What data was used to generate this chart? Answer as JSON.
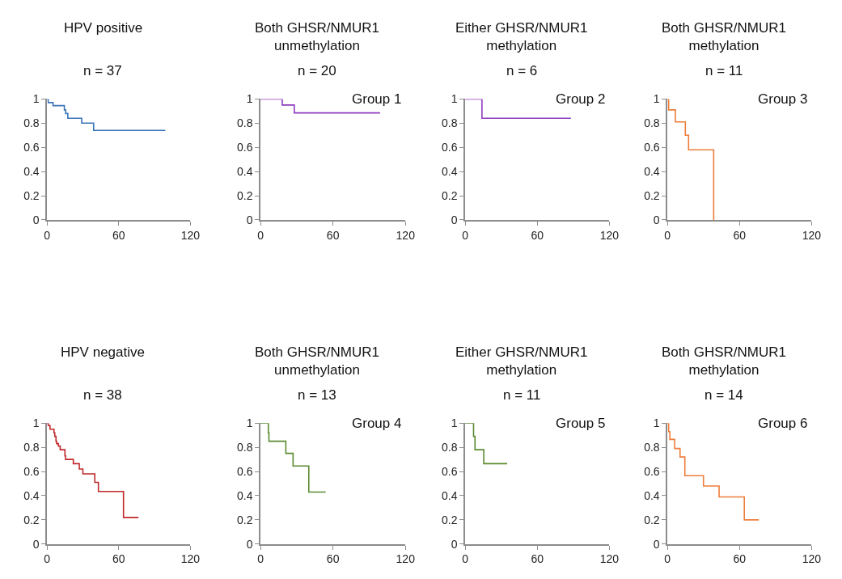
{
  "chart_data": [
    {
      "type": "step",
      "title": "HPV positive",
      "subtitle": "n = 37",
      "color": "#3a75b9",
      "x": [
        0,
        1,
        5,
        14.5,
        15.6,
        17.4,
        29,
        39,
        99
      ],
      "values": [
        1,
        0.97,
        0.945,
        0.91,
        0.88,
        0.84,
        0.8,
        0.74,
        0.74
      ],
      "xlim": [
        0,
        120
      ],
      "ylim": [
        0,
        1
      ],
      "xticks": [
        0,
        60,
        120
      ],
      "yticks": [
        0,
        0.2,
        0.4,
        0.6,
        0.8,
        1
      ]
    },
    {
      "type": "step",
      "title": "Both GHSR/NMUR1 unmethylation",
      "subtitle": "n = 20",
      "annotations": [
        "Group 1"
      ],
      "color": "#8e3bbf",
      "x": [
        0,
        18,
        28,
        99
      ],
      "values": [
        1,
        0.95,
        0.885,
        0.885
      ],
      "xlim": [
        0,
        120
      ],
      "ylim": [
        0,
        1
      ],
      "xticks": [
        0,
        60,
        120
      ],
      "yticks": [
        0,
        0.2,
        0.4,
        0.6,
        0.8,
        1
      ]
    },
    {
      "type": "step",
      "title": "Either GHSR/NMUR1 methylation",
      "subtitle": "n = 6",
      "annotations": [
        "Group 2"
      ],
      "color": "#8e3bbf",
      "x": [
        0,
        14,
        88
      ],
      "values": [
        1,
        0.84,
        0.84
      ],
      "xlim": [
        0,
        120
      ],
      "ylim": [
        0,
        1
      ],
      "xticks": [
        0,
        60,
        120
      ],
      "yticks": [
        0,
        0.2,
        0.4,
        0.6,
        0.8,
        1
      ]
    },
    {
      "type": "step",
      "title": "Both GHSR/NMUR1 methylation",
      "subtitle": "n = 11",
      "annotations": [
        "Group 3"
      ],
      "color": "#ee7d3a",
      "x": [
        0,
        1,
        6.6,
        14.9,
        17.6,
        38.5
      ],
      "values": [
        1,
        0.91,
        0.81,
        0.7,
        0.58,
        0
      ],
      "xlim": [
        0,
        120
      ],
      "ylim": [
        0,
        1
      ],
      "xticks": [
        0,
        60,
        120
      ],
      "yticks": [
        0,
        0.2,
        0.4,
        0.6,
        0.8,
        1
      ]
    },
    {
      "type": "step",
      "title": "HPV negative",
      "subtitle": "n = 38",
      "color": "#c0282a",
      "x": [
        0,
        1,
        2.5,
        5.8,
        6.5,
        7.5,
        8,
        9.5,
        11,
        15,
        15.5,
        22,
        27,
        30,
        40,
        43,
        64,
        76.5
      ],
      "values": [
        1,
        0.98,
        0.95,
        0.92,
        0.89,
        0.85,
        0.83,
        0.81,
        0.78,
        0.73,
        0.7,
        0.665,
        0.62,
        0.58,
        0.51,
        0.435,
        0.22,
        0.22
      ],
      "xlim": [
        0,
        120
      ],
      "ylim": [
        0,
        1
      ],
      "xticks": [
        0,
        60,
        120
      ],
      "yticks": [
        0,
        0.2,
        0.4,
        0.6,
        0.8,
        1
      ]
    },
    {
      "type": "step",
      "title": "Both GHSR/NMUR1 unmethylation",
      "subtitle": "n = 13",
      "annotations": [
        "Group 4"
      ],
      "color": "#5a8a30",
      "x": [
        0,
        6.5,
        7,
        21,
        27,
        40,
        54
      ],
      "values": [
        1,
        0.92,
        0.85,
        0.75,
        0.645,
        0.43,
        0.43
      ],
      "xlim": [
        0,
        120
      ],
      "ylim": [
        0,
        1
      ],
      "xticks": [
        0,
        60,
        120
      ],
      "yticks": [
        0,
        0.2,
        0.4,
        0.6,
        0.8,
        1
      ]
    },
    {
      "type": "step",
      "title": "Either GHSR/NMUR1 methylation",
      "subtitle": "n = 11",
      "annotations": [
        "Group 5"
      ],
      "color": "#5a8a30",
      "x": [
        0,
        7,
        8.2,
        15.5,
        35
      ],
      "values": [
        1,
        0.89,
        0.78,
        0.665,
        0.665
      ],
      "xlim": [
        0,
        120
      ],
      "ylim": [
        0,
        1
      ],
      "xticks": [
        0,
        60,
        120
      ],
      "yticks": [
        0,
        0.2,
        0.4,
        0.6,
        0.8,
        1
      ]
    },
    {
      "type": "step",
      "title": "Both GHSR/NMUR1 methylation",
      "subtitle": "n = 14",
      "annotations": [
        "Group 6"
      ],
      "color": "#ee7d3a",
      "x": [
        0,
        1,
        2,
        6,
        10.5,
        14.5,
        30,
        43,
        64,
        76
      ],
      "values": [
        1,
        0.93,
        0.865,
        0.79,
        0.72,
        0.565,
        0.48,
        0.39,
        0.2,
        0.2
      ],
      "xlim": [
        0,
        120
      ],
      "ylim": [
        0,
        1
      ],
      "xticks": [
        0,
        60,
        120
      ],
      "yticks": [
        0,
        0.2,
        0.4,
        0.6,
        0.8,
        1
      ]
    }
  ]
}
